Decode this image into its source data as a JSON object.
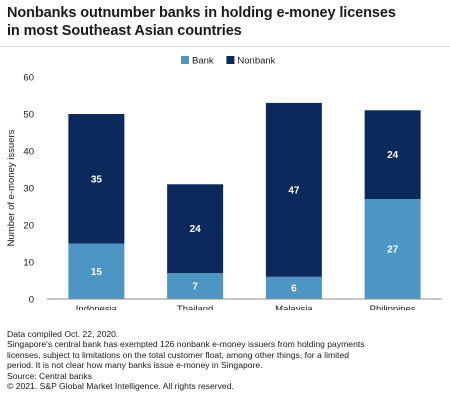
{
  "header": {
    "title_lines": [
      "Nonbanks outnumber banks in holding e-money licenses",
      "in most Southeast Asian countries"
    ]
  },
  "chart_data": {
    "type": "bar",
    "stacked": true,
    "categories": [
      "Indonesia",
      "Thailand",
      "Malaysia",
      "Philippines"
    ],
    "series": [
      {
        "name": "Bank",
        "values": [
          15,
          7,
          6,
          27
        ],
        "color": "#4d96c4"
      },
      {
        "name": "Nonbank",
        "values": [
          35,
          24,
          47,
          24
        ],
        "color": "#0b2a5b"
      }
    ],
    "ylabel": "Number of e-money issuers",
    "xlabel": "",
    "ylim": [
      0,
      60
    ],
    "yticks": [
      0,
      10,
      20,
      30,
      40,
      50,
      60
    ],
    "grid": false,
    "legend_position": "top",
    "data_labels": true
  },
  "footnotes": [
    "Data compiled Oct. 22, 2020.",
    "Singapore's central bank has exempted 126 nonbank e-money issuers from holding payments",
    "licenses, subject to limitations on the total customer float, among other things, for a limited",
    "period. It is not clear how many banks issue e-money in Singapore.",
    "Source: Central banks",
    "© 2021. S&P Global Market Intelligence. All rights reserved."
  ]
}
